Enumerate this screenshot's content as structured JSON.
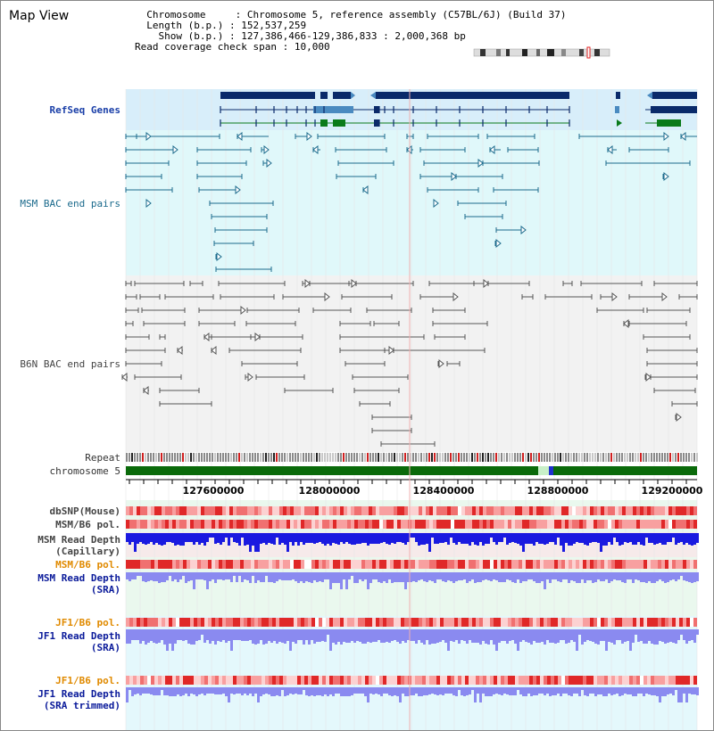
{
  "page": {
    "title": "Map View"
  },
  "info": {
    "chromosome_key": "Chromosome",
    "chromosome_value": "Chromosome 5, reference assembly (C57BL/6J) (Build 37)",
    "length_key": "Length (b.p.)",
    "length_value": "152,537,259",
    "show_key": "Show (b.p.)",
    "show_value": "127,386,466-129,386,833 : 2,000,368 bp",
    "span_key": "Read coverage check span",
    "span_value": "10,000"
  },
  "tracks": {
    "refseq": "RefSeq Genes",
    "msm_bac": "MSM BAC end pairs",
    "b6n_bac": "B6N BAC end pairs",
    "repeat": "Repeat",
    "chromosome": "chromosome 5",
    "dbsnp": "dbSNP(Mouse)",
    "msm_b6_pol": "MSM/B6 pol.",
    "msm_depth_cap_1": "MSM Read Depth",
    "msm_depth_cap_2": "(Capillary)",
    "msm_b6_pol_sra": "MSM/B6 pol.",
    "msm_depth_sra_1": "MSM Read Depth",
    "msm_depth_sra_2": "(SRA)",
    "jf1_b6_pol": "JF1/B6 pol.",
    "jf1_depth_1": "JF1 Read Depth",
    "jf1_depth_2": "(SRA)",
    "jf1_b6_pol_2": "JF1/B6 pol.",
    "jf1_trim_1": "JF1 Read Depth",
    "jf1_trim_2": "(SRA trimmed)"
  },
  "axis": {
    "ticks": [
      "127600000",
      "128000000",
      "128400000",
      "128800000",
      "129200000"
    ]
  },
  "colors": {
    "gene_dark": "#0a2a6a",
    "gene_mid": "#4a8ac0",
    "gene_green": "#0a7a1a",
    "msm_bac": "#1b6a8c",
    "b6n_bac": "#555555",
    "chrom_green": "#0a6a0a",
    "depth_blue": "#1a1ae0",
    "depth_light": "#8a8af0"
  }
}
